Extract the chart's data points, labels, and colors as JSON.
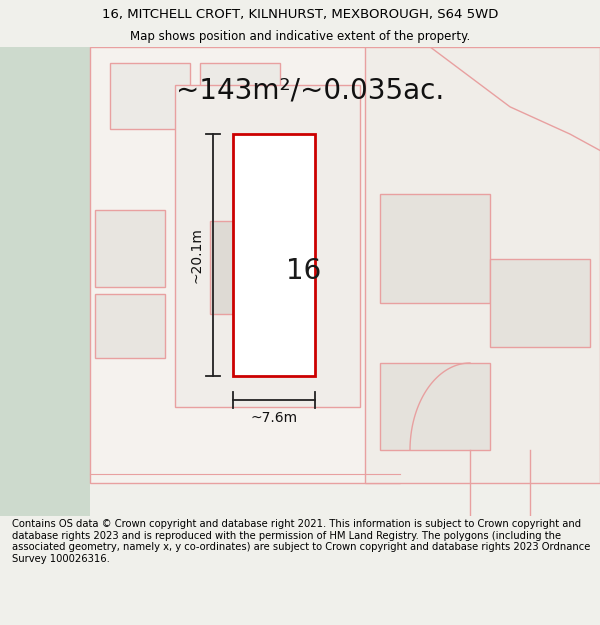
{
  "title_line1": "16, MITCHELL CROFT, KILNHURST, MEXBOROUGH, S64 5WD",
  "title_line2": "Map shows position and indicative extent of the property.",
  "footer_text": "Contains OS data © Crown copyright and database right 2021. This information is subject to Crown copyright and database rights 2023 and is reproduced with the permission of HM Land Registry. The polygons (including the associated geometry, namely x, y co-ordinates) are subject to Crown copyright and database rights 2023 Ordnance Survey 100026316.",
  "area_text": "~143m²/~0.035ac.",
  "dim_width": "~7.6m",
  "dim_height": "~20.1m",
  "number_label": "16",
  "bg_color": "#f0f0eb",
  "map_bg": "#f8f8f5",
  "green_color": "#cddacd",
  "polygon_line_color": "#e8a0a0",
  "highlight_color": "#cc0000",
  "dim_line_color": "#222222",
  "title_fontsize": 9.5,
  "subtitle_fontsize": 8.5,
  "area_fontsize": 20,
  "number_fontsize": 20,
  "dim_fontsize": 10,
  "footer_fontsize": 7.2
}
